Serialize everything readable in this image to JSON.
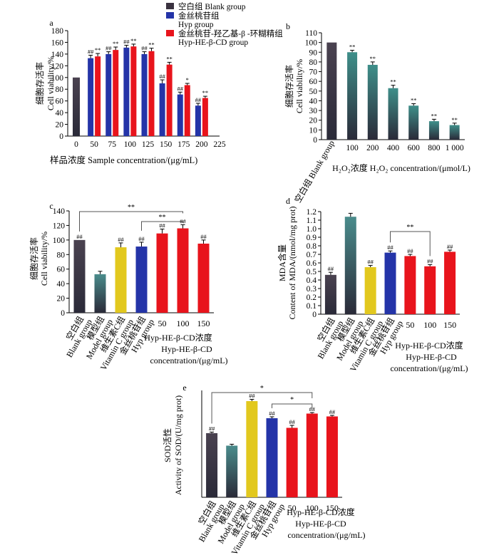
{
  "legend": {
    "blank": {
      "zh": "空白组",
      "en": "Blank group",
      "color": "#3a3240"
    },
    "hyp": {
      "zh": "金丝桃苷组",
      "en": "Hyp group",
      "color": "#2434a8"
    },
    "hyphe": {
      "zh": "金丝桃苷-羟乙基-β -环糊精组",
      "en": "Hyp-HE-β-CD group",
      "color": "#e8141c"
    }
  },
  "chart_data": [
    {
      "panel": "a",
      "type": "bar",
      "ylabel_zh": "细胞存活率",
      "ylabel_en": "Cell viability/%",
      "xlabel": "样品浓度  Sample concentration/(μg/mL)",
      "ylim": [
        0,
        180
      ],
      "yticks": [
        0,
        20,
        40,
        60,
        80,
        100,
        120,
        140,
        160,
        180
      ],
      "xticks": [
        "0",
        "50",
        "75",
        "100",
        "125",
        "150",
        "175",
        "200",
        "225"
      ],
      "blank": {
        "x": 0,
        "value": 100
      },
      "categories": [
        "50",
        "75",
        "100",
        "125",
        "150",
        "175",
        "200"
      ],
      "series": [
        {
          "name": "Hyp group",
          "values": [
            133,
            140,
            151,
            140,
            90,
            71,
            52
          ],
          "errors": [
            5,
            4,
            4,
            4,
            6,
            4,
            4
          ],
          "labels": [
            "##",
            "##",
            "##",
            "##",
            "##",
            "##",
            "##"
          ]
        },
        {
          "name": "Hyp-HE-β-CD group",
          "values": [
            136,
            147,
            153,
            145,
            122,
            87,
            65
          ],
          "errors": [
            5,
            5,
            4,
            5,
            4,
            3,
            3
          ],
          "labels": [
            "**",
            "**",
            "**",
            "**",
            "**",
            "*",
            "**"
          ]
        }
      ]
    },
    {
      "panel": "b",
      "type": "bar",
      "ylabel_zh": "细胞存活率",
      "ylabel_en": "Cell viability/%",
      "xlabel": "H₂O₂浓度  H₂O₂ concentration/(μmol/L)",
      "ylim": [
        0,
        110
      ],
      "yticks": [
        0,
        10,
        20,
        30,
        40,
        50,
        60,
        70,
        80,
        90,
        100,
        110
      ],
      "categories": [
        "空白组  Blank group",
        "100",
        "200",
        "400",
        "600",
        "800",
        "1 000"
      ],
      "values": [
        100,
        90,
        77,
        53,
        35,
        19,
        15
      ],
      "errors": [
        0,
        2,
        3,
        3,
        2,
        2,
        2
      ],
      "labels": [
        "",
        "**",
        "**",
        "**",
        "**",
        "**",
        "**"
      ]
    },
    {
      "panel": "c",
      "type": "bar",
      "ylabel_zh": "细胞存活率",
      "ylabel_en": "Cell viability/%",
      "ylim": [
        0,
        140
      ],
      "yticks": [
        0,
        20,
        40,
        60,
        80,
        100,
        120,
        140
      ],
      "categories": [
        "空白组 Blank group",
        "模型组 Model group",
        "维生素C组 Vitamin C group",
        "金丝桃苷组 Hyp group",
        "50",
        "100",
        "150"
      ],
      "values": [
        100,
        53,
        90,
        91,
        109,
        116,
        95
      ],
      "errors": [
        0,
        4,
        6,
        6,
        6,
        5,
        5
      ],
      "labels": [
        "##",
        "",
        "##",
        "##",
        "##",
        "##",
        "##"
      ],
      "group_label": "Hyp-HE-β-CD浓度",
      "group_sub": "Hyp-HE-β-CD",
      "group_unit": "concentration/(μg/mL)",
      "brackets": [
        {
          "from": 0,
          "to": 5,
          "label": "**"
        },
        {
          "from": 3,
          "to": 5,
          "label": "**"
        }
      ]
    },
    {
      "panel": "d",
      "type": "bar",
      "ylabel_zh": "MDA含量",
      "ylabel_en": "Content of MDA/(nmol/mg prot)",
      "ylim": [
        0,
        1.2
      ],
      "yticks": [
        0,
        0.1,
        0.2,
        0.3,
        0.4,
        0.5,
        0.6,
        0.7,
        0.8,
        0.9,
        1.0,
        1.1,
        1.2
      ],
      "categories": [
        "空白组 Blank group",
        "模型组 Model group",
        "维生素C组 Vitamin C group",
        "金丝桃苷组 Hyp group",
        "50",
        "100",
        "150"
      ],
      "values": [
        0.46,
        1.14,
        0.55,
        0.72,
        0.68,
        0.56,
        0.73
      ],
      "errors": [
        0.03,
        0.04,
        0.02,
        0.02,
        0.02,
        0.02,
        0.02
      ],
      "labels": [
        "##",
        "",
        "##",
        "##",
        "##",
        "##",
        "##"
      ],
      "group_label": "Hyp-HE-β-CD浓度",
      "group_sub": "Hyp-HE-β-CD",
      "group_unit": "concentration/(μg/mL)",
      "brackets": [
        {
          "from": 3,
          "to": 5,
          "label": "**"
        }
      ]
    },
    {
      "panel": "e",
      "type": "bar",
      "ylabel_zh": "SOD活性",
      "ylabel_en": "Activity of SOD/(U/mg prot)",
      "ylim": [
        0,
        30
      ],
      "categories": [
        "空白组 Blank group",
        "模型组 Model group",
        "维生素C组 Vitamin C group",
        "金丝桃苷组 Hyp group",
        "50",
        "100",
        "150"
      ],
      "values": [
        18.0,
        14.5,
        27.0,
        22.2,
        19.5,
        23.5,
        22.7
      ],
      "errors": [
        0.3,
        0.4,
        0.5,
        0.4,
        0.7,
        0.3,
        0.3
      ],
      "labels": [
        "##",
        "",
        "##",
        "##",
        "##",
        "##",
        "##"
      ],
      "group_label": "Hyp-HE-β-CD浓度",
      "group_sub": "Hyp-HE-β-CD",
      "group_unit": "concentration/(μg/mL)",
      "brackets": [
        {
          "from": 0,
          "to": 5,
          "label": "*"
        },
        {
          "from": 3,
          "to": 5,
          "label": "*"
        }
      ]
    }
  ],
  "colors": {
    "blank": "#3a3240",
    "model": "#4a8c8c",
    "vitc": "#e2c81e",
    "hyp": "#2434a8",
    "hyphe": "#e8141c",
    "h2o2": "#3f8f8a"
  }
}
